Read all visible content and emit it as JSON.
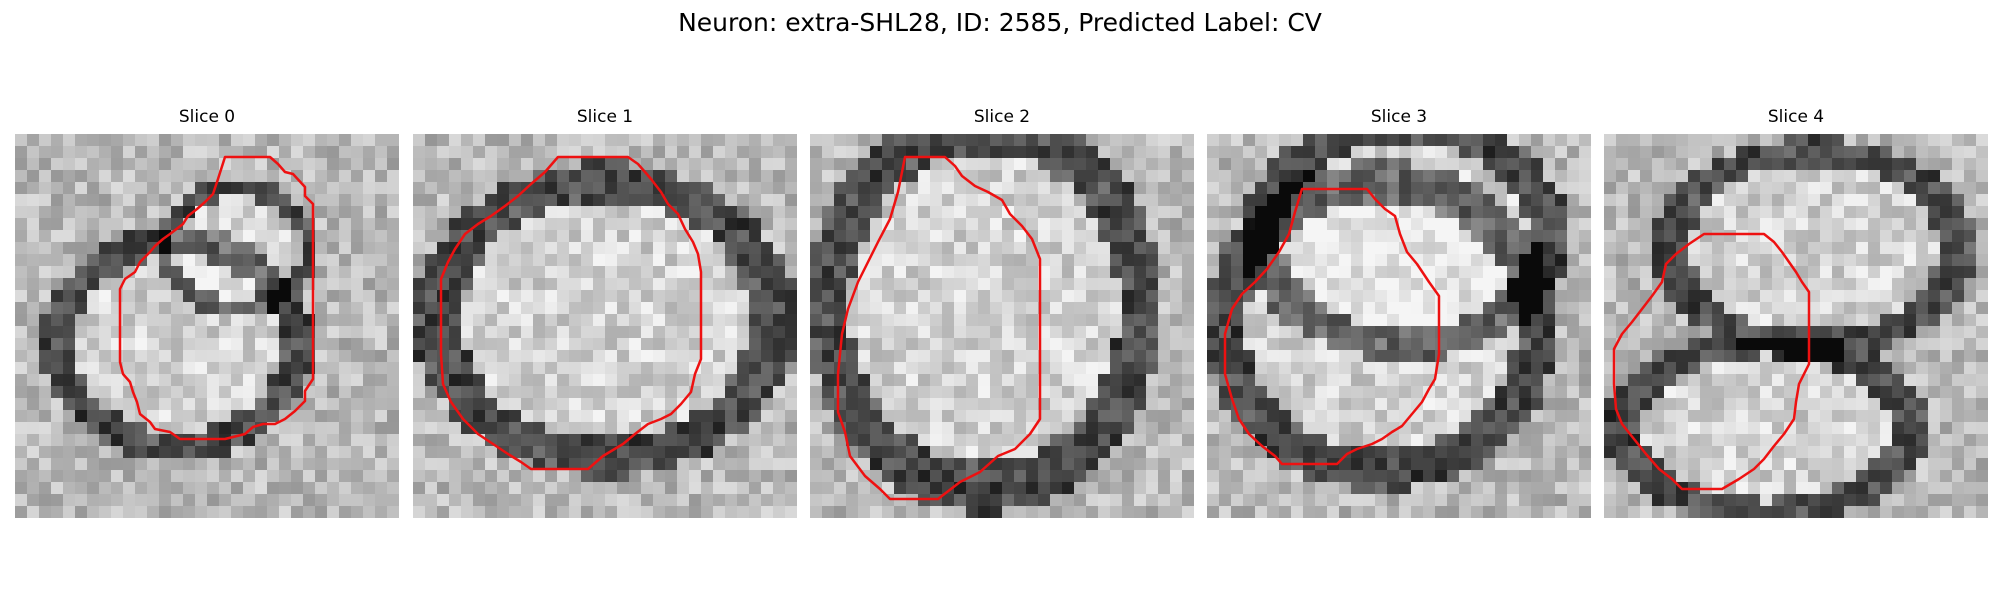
{
  "figure": {
    "title": "Neuron: extra-SHL28, ID: 2585, Predicted Label: CV",
    "contour_color": "#ee1111",
    "colormap": "grayscale"
  },
  "panels": [
    {
      "title": "Slice 0",
      "contour": [
        [
          210,
          23
        ],
        [
          255,
          23
        ],
        [
          263,
          30
        ],
        [
          270,
          38
        ],
        [
          278,
          40
        ],
        [
          290,
          53
        ],
        [
          290,
          62
        ],
        [
          298,
          70
        ],
        [
          298,
          245
        ],
        [
          290,
          257
        ],
        [
          290,
          267
        ],
        [
          280,
          277
        ],
        [
          270,
          285
        ],
        [
          260,
          290
        ],
        [
          248,
          290
        ],
        [
          238,
          293
        ],
        [
          230,
          300
        ],
        [
          210,
          305
        ],
        [
          165,
          305
        ],
        [
          155,
          298
        ],
        [
          140,
          295
        ],
        [
          135,
          288
        ],
        [
          125,
          280
        ],
        [
          122,
          268
        ],
        [
          118,
          258
        ],
        [
          115,
          248
        ],
        [
          108,
          240
        ],
        [
          105,
          228
        ],
        [
          105,
          155
        ],
        [
          110,
          145
        ],
        [
          120,
          138
        ],
        [
          125,
          128
        ],
        [
          135,
          118
        ],
        [
          140,
          112
        ],
        [
          148,
          105
        ],
        [
          155,
          100
        ],
        [
          168,
          90
        ],
        [
          173,
          82
        ],
        [
          182,
          75
        ],
        [
          190,
          68
        ],
        [
          198,
          60
        ],
        [
          203,
          45
        ]
      ]
    },
    {
      "title": "Slice 1",
      "contour": [
        [
          145,
          23
        ],
        [
          215,
          23
        ],
        [
          225,
          30
        ],
        [
          232,
          38
        ],
        [
          238,
          45
        ],
        [
          248,
          58
        ],
        [
          255,
          70
        ],
        [
          265,
          80
        ],
        [
          272,
          95
        ],
        [
          280,
          108
        ],
        [
          285,
          120
        ],
        [
          288,
          138
        ],
        [
          288,
          225
        ],
        [
          282,
          240
        ],
        [
          278,
          258
        ],
        [
          268,
          270
        ],
        [
          258,
          280
        ],
        [
          248,
          285
        ],
        [
          235,
          290
        ],
        [
          222,
          300
        ],
        [
          210,
          310
        ],
        [
          190,
          322
        ],
        [
          175,
          335
        ],
        [
          118,
          335
        ],
        [
          108,
          328
        ],
        [
          95,
          320
        ],
        [
          80,
          310
        ],
        [
          65,
          300
        ],
        [
          50,
          285
        ],
        [
          38,
          268
        ],
        [
          30,
          250
        ],
        [
          28,
          220
        ],
        [
          28,
          145
        ],
        [
          35,
          128
        ],
        [
          42,
          115
        ],
        [
          52,
          100
        ],
        [
          65,
          90
        ],
        [
          78,
          82
        ],
        [
          92,
          72
        ],
        [
          105,
          62
        ],
        [
          118,
          50
        ],
        [
          132,
          38
        ]
      ]
    },
    {
      "title": "Slice 2",
      "contour": [
        [
          95,
          23
        ],
        [
          135,
          23
        ],
        [
          145,
          32
        ],
        [
          152,
          42
        ],
        [
          165,
          52
        ],
        [
          178,
          58
        ],
        [
          192,
          66
        ],
        [
          200,
          80
        ],
        [
          212,
          92
        ],
        [
          222,
          105
        ],
        [
          230,
          125
        ],
        [
          230,
          285
        ],
        [
          220,
          300
        ],
        [
          205,
          315
        ],
        [
          188,
          322
        ],
        [
          170,
          338
        ],
        [
          150,
          348
        ],
        [
          128,
          365
        ],
        [
          80,
          365
        ],
        [
          70,
          355
        ],
        [
          55,
          342
        ],
        [
          40,
          322
        ],
        [
          35,
          298
        ],
        [
          28,
          278
        ],
        [
          28,
          240
        ],
        [
          32,
          200
        ],
        [
          38,
          175
        ],
        [
          48,
          148
        ],
        [
          58,
          128
        ],
        [
          68,
          108
        ],
        [
          80,
          85
        ],
        [
          88,
          58
        ]
      ]
    },
    {
      "title": "Slice 3",
      "contour": [
        [
          95,
          55
        ],
        [
          160,
          55
        ],
        [
          168,
          65
        ],
        [
          178,
          75
        ],
        [
          188,
          82
        ],
        [
          193,
          100
        ],
        [
          200,
          118
        ],
        [
          210,
          130
        ],
        [
          222,
          148
        ],
        [
          232,
          162
        ],
        [
          232,
          220
        ],
        [
          228,
          245
        ],
        [
          222,
          255
        ],
        [
          215,
          268
        ],
        [
          205,
          280
        ],
        [
          195,
          292
        ],
        [
          185,
          298
        ],
        [
          175,
          305
        ],
        [
          165,
          310
        ],
        [
          150,
          315
        ],
        [
          140,
          320
        ],
        [
          130,
          330
        ],
        [
          75,
          330
        ],
        [
          68,
          322
        ],
        [
          55,
          312
        ],
        [
          42,
          300
        ],
        [
          32,
          285
        ],
        [
          25,
          265
        ],
        [
          18,
          240
        ],
        [
          18,
          200
        ],
        [
          25,
          175
        ],
        [
          35,
          160
        ],
        [
          48,
          148
        ],
        [
          60,
          135
        ],
        [
          72,
          118
        ],
        [
          82,
          100
        ],
        [
          88,
          78
        ]
      ]
    },
    {
      "title": "Slice 4",
      "contour": [
        [
          100,
          100
        ],
        [
          160,
          100
        ],
        [
          170,
          108
        ],
        [
          178,
          118
        ],
        [
          185,
          128
        ],
        [
          192,
          138
        ],
        [
          198,
          148
        ],
        [
          205,
          158
        ],
        [
          205,
          230
        ],
        [
          195,
          250
        ],
        [
          192,
          268
        ],
        [
          190,
          285
        ],
        [
          180,
          300
        ],
        [
          170,
          312
        ],
        [
          160,
          325
        ],
        [
          150,
          335
        ],
        [
          135,
          345
        ],
        [
          118,
          355
        ],
        [
          78,
          355
        ],
        [
          68,
          345
        ],
        [
          55,
          335
        ],
        [
          42,
          320
        ],
        [
          30,
          305
        ],
        [
          18,
          290
        ],
        [
          12,
          275
        ],
        [
          10,
          250
        ],
        [
          10,
          215
        ],
        [
          18,
          200
        ],
        [
          28,
          188
        ],
        [
          38,
          175
        ],
        [
          48,
          162
        ],
        [
          58,
          148
        ],
        [
          62,
          130
        ],
        [
          72,
          120
        ],
        [
          85,
          110
        ]
      ]
    }
  ]
}
